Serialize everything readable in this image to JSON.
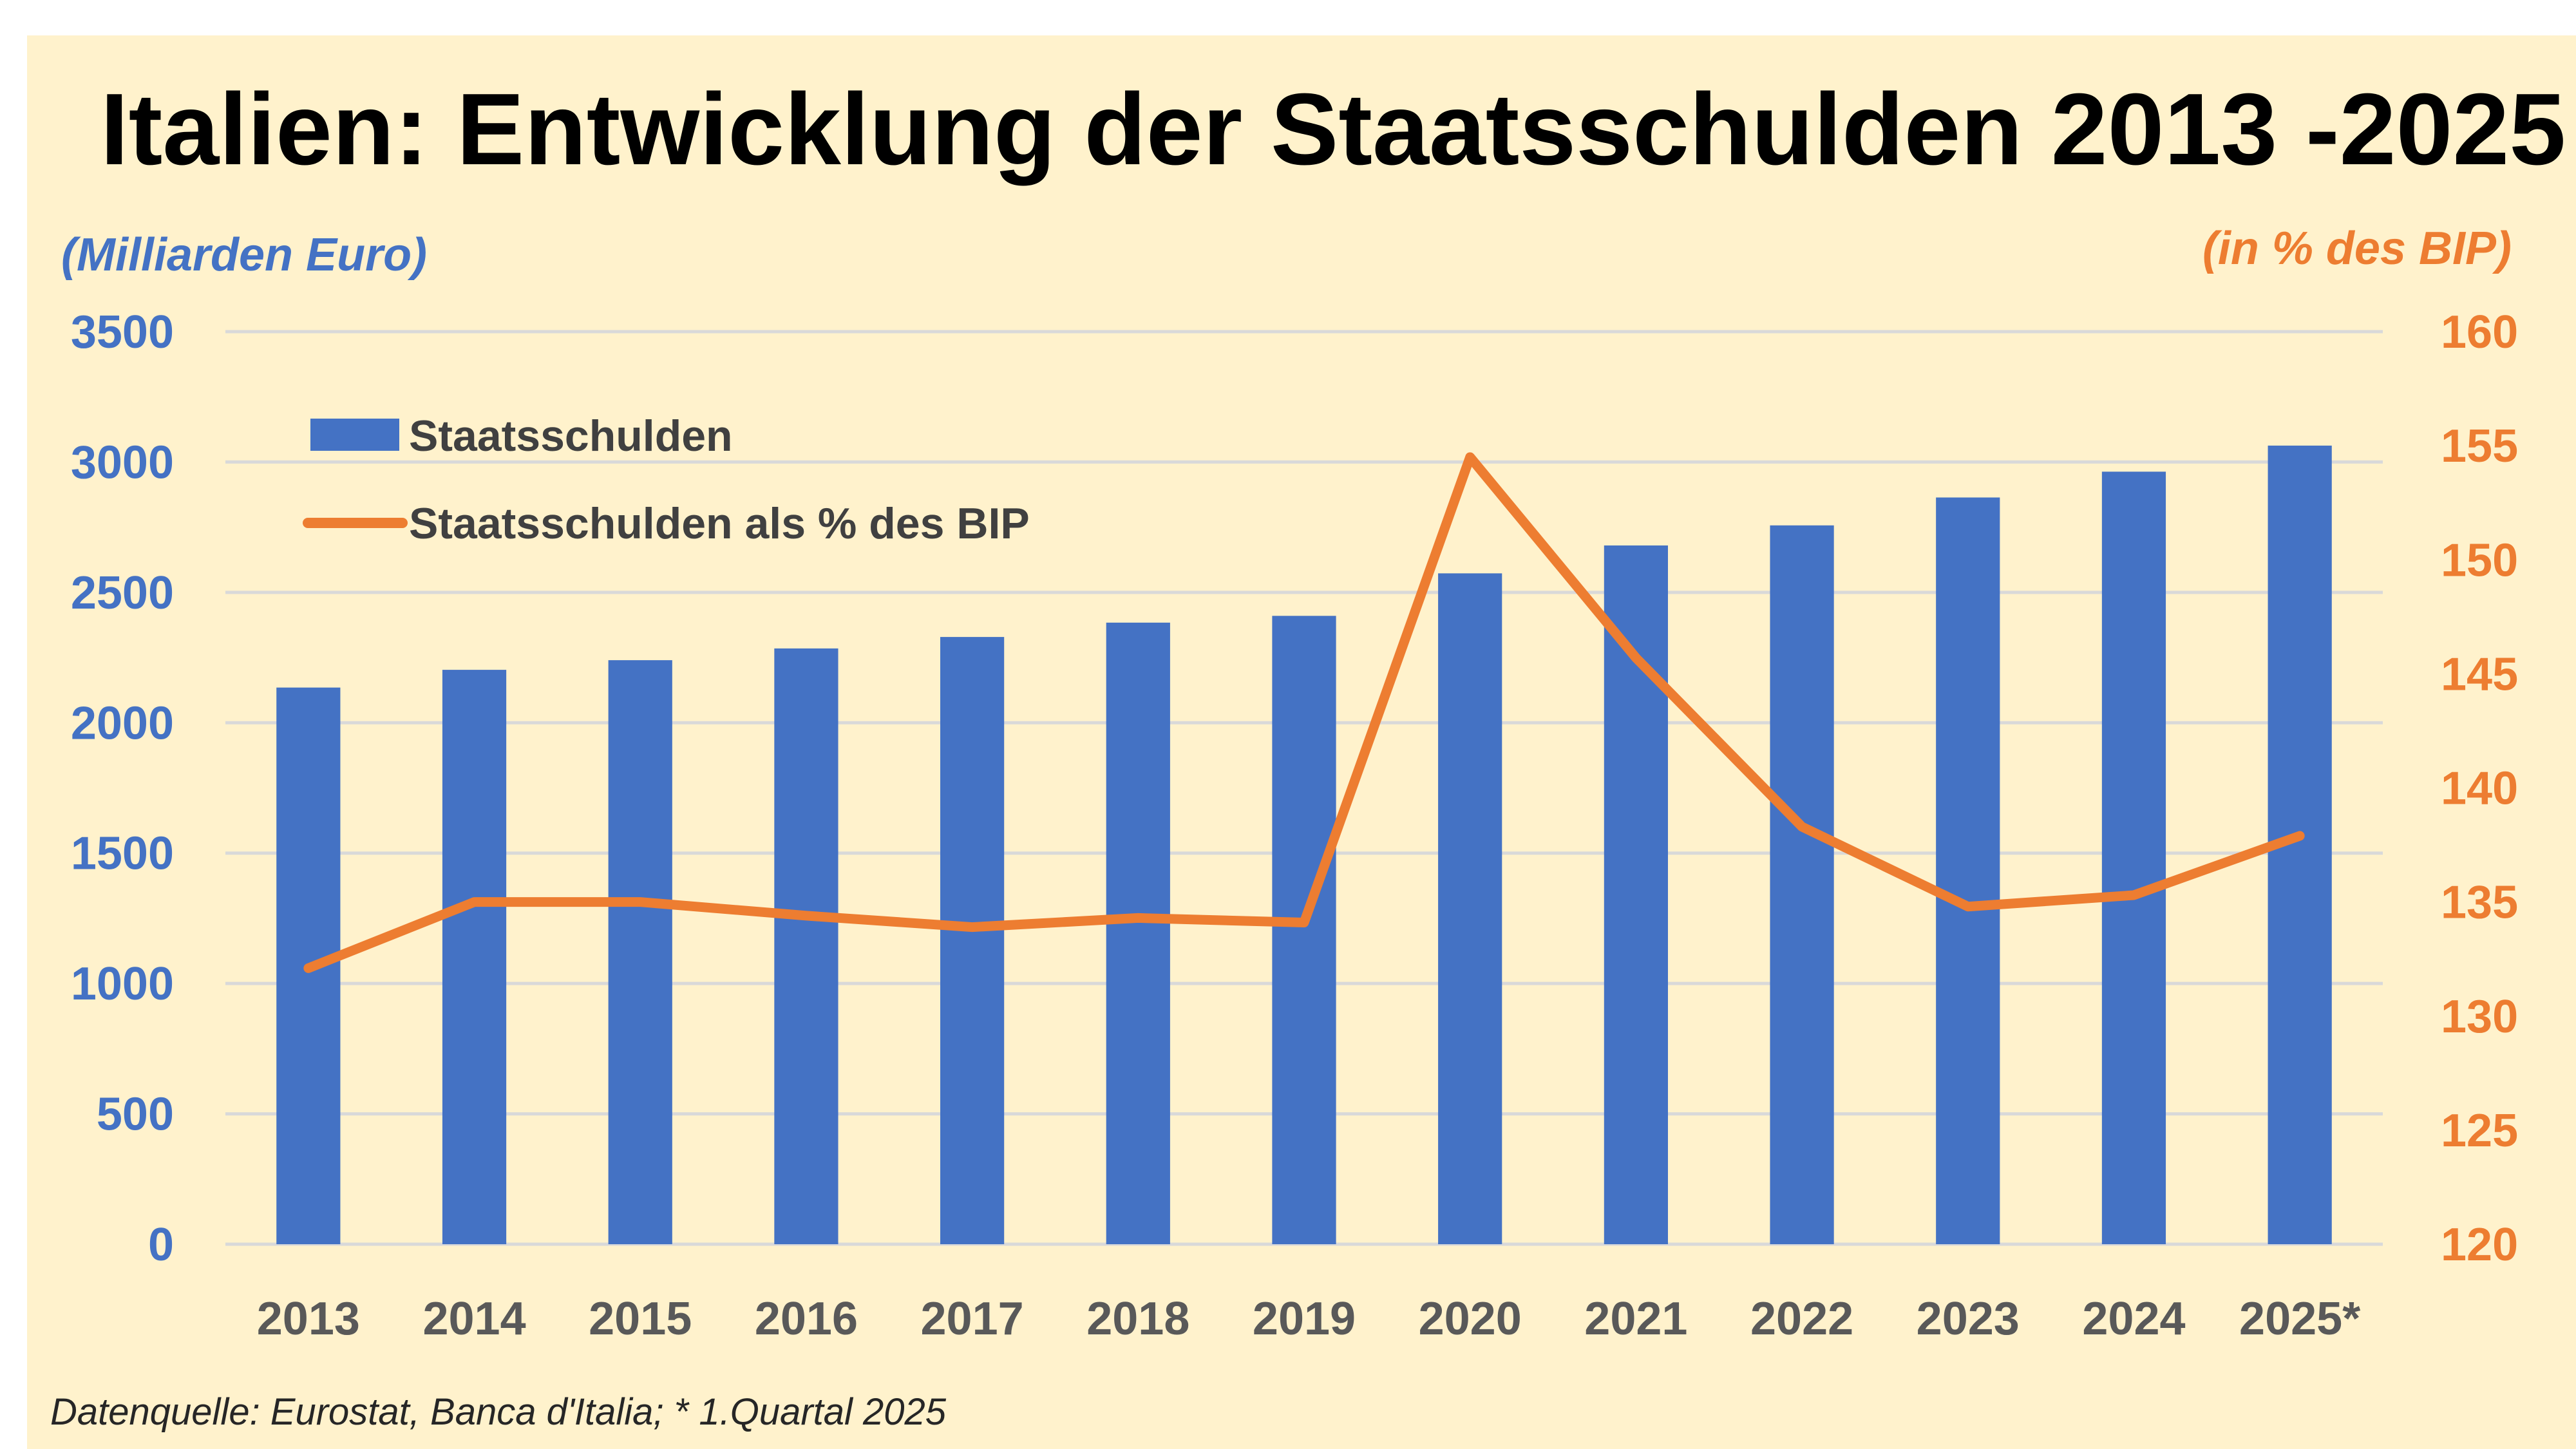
{
  "chart_data": {
    "type": "bar",
    "title": "Italien: Entwicklung der Staatsschulden 2013 -2025",
    "categories": [
      "2013",
      "2014",
      "2015",
      "2016",
      "2017",
      "2018",
      "2019",
      "2020",
      "2021",
      "2022",
      "2023",
      "2024",
      "2025*"
    ],
    "series": [
      {
        "name": "Staatsschulden",
        "type": "bar",
        "axis": "left",
        "values": [
          2135,
          2203,
          2240,
          2285,
          2329,
          2384,
          2410,
          2573,
          2680,
          2757,
          2864,
          2963,
          3063
        ]
      },
      {
        "name": "Staatsschulden als % des BIP",
        "type": "line",
        "axis": "right",
        "values": [
          132.1,
          135.0,
          135.0,
          134.4,
          133.9,
          134.3,
          134.1,
          154.5,
          145.7,
          138.3,
          134.8,
          135.3,
          137.9
        ]
      }
    ],
    "yaxis_left": {
      "label": "(Milliarden Euro)",
      "min": 0,
      "max": 3500,
      "ticks": [
        "0",
        "500",
        "1000",
        "1500",
        "2000",
        "2500",
        "3000",
        "3500"
      ]
    },
    "yaxis_right": {
      "label": "(in % des BIP)",
      "min": 120,
      "max": 160,
      "ticks": [
        "120",
        "125",
        "130",
        "135",
        "140",
        "145",
        "150",
        "155",
        "160"
      ]
    },
    "grid": true,
    "legend_position": "top-left",
    "colors": {
      "bar": "#4472C4",
      "line": "#ED7D31",
      "left_axis_text": "#4472C4",
      "right_axis_text": "#ED7D31",
      "background": "#FFF2CC",
      "grid": "#D9D9D9"
    },
    "source": "Datenquelle:  Eurostat, Banca d'Italia; * 1.Quartal 2025"
  }
}
